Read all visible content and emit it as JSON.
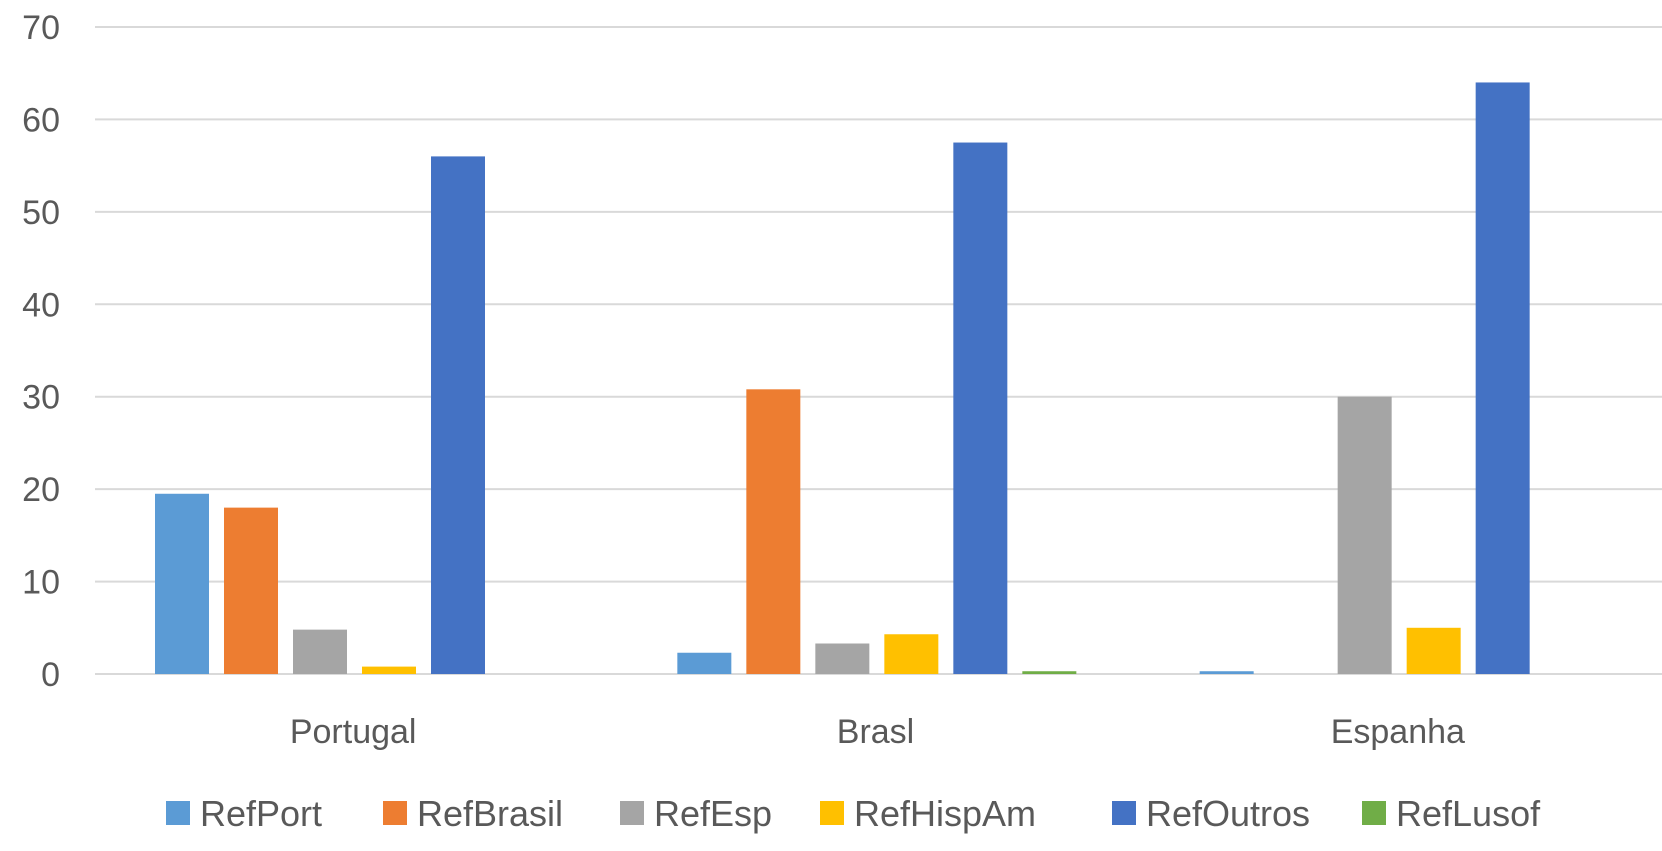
{
  "chart_data": {
    "type": "bar",
    "title": "",
    "xlabel": "",
    "ylabel": "",
    "categories": [
      "Portugal",
      "Brasl",
      "Espanha"
    ],
    "ylim": [
      0,
      70
    ],
    "yticks": [
      0,
      10,
      20,
      30,
      40,
      50,
      60,
      70
    ],
    "grid": true,
    "legend_position": "bottom",
    "series": [
      {
        "name": "RefPort",
        "color": "#5b9bd5",
        "values": [
          19.5,
          2.3,
          0.3
        ]
      },
      {
        "name": "RefBrasil",
        "color": "#ed7d31",
        "values": [
          18.0,
          30.8,
          0
        ]
      },
      {
        "name": "RefEsp",
        "color": "#a5a5a5",
        "values": [
          4.8,
          3.3,
          30.0
        ]
      },
      {
        "name": "RefHispAm",
        "color": "#ffc000",
        "values": [
          0.8,
          4.3,
          5.0
        ]
      },
      {
        "name": "RefOutros",
        "color": "#4472c4",
        "values": [
          56.0,
          57.5,
          64.0
        ]
      },
      {
        "name": "RefLusof",
        "color": "#70ad47",
        "values": [
          0,
          0.3,
          0
        ]
      }
    ]
  }
}
